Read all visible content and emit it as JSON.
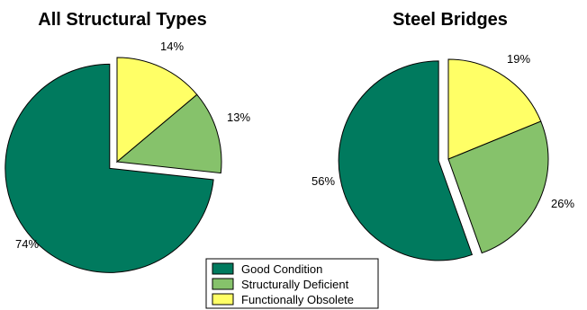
{
  "chart_data": [
    {
      "type": "pie",
      "title": "All Structural Types",
      "slices": [
        {
          "label": "Good Condition",
          "value": 74,
          "value_label": "74%",
          "exploded": true
        },
        {
          "label": "Structurally Deficient",
          "value": 13,
          "value_label": "13%",
          "exploded": false
        },
        {
          "label": "Functionally Obsolete",
          "value": 14,
          "value_label": "14%",
          "exploded": false
        }
      ]
    },
    {
      "type": "pie",
      "title": "Steel Bridges",
      "slices": [
        {
          "label": "Good Condition",
          "value": 56,
          "value_label": "56%",
          "exploded": true
        },
        {
          "label": "Structurally Deficient",
          "value": 26,
          "value_label": "26%",
          "exploded": false
        },
        {
          "label": "Functionally Obsolete",
          "value": 19,
          "value_label": "19%",
          "exploded": false
        }
      ]
    }
  ],
  "legend": {
    "placement": "bottom-center",
    "entries": [
      {
        "label": "Good Condition",
        "color": "#007a5e"
      },
      {
        "label": "Structurally Deficient",
        "color": "#86c26b"
      },
      {
        "label": "Functionally Obsolete",
        "color": "#ffff66"
      }
    ]
  },
  "colors": {
    "good": "#007a5e",
    "deficient": "#86c26b",
    "obsolete": "#ffff66"
  }
}
